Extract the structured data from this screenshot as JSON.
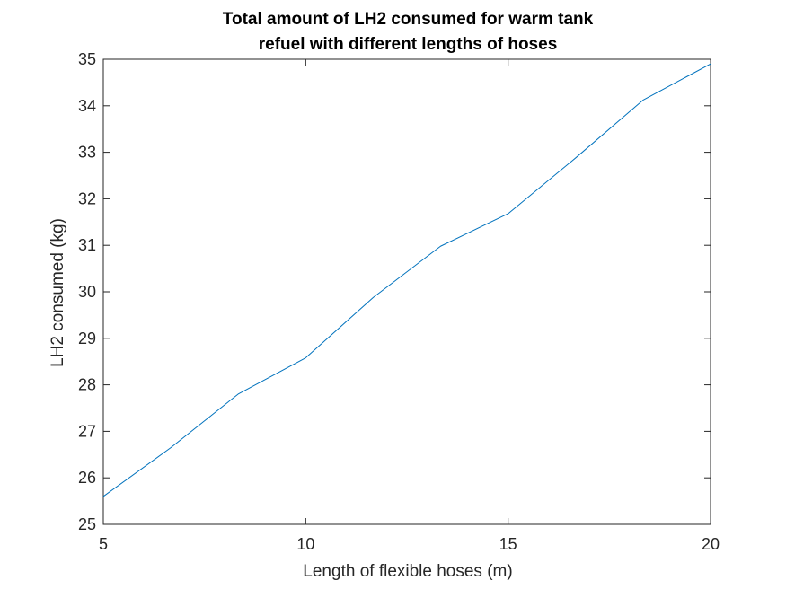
{
  "chart_data": {
    "type": "line",
    "title": [
      "Total amount of LH2 consumed for warm tank",
      "refuel with different lengths of hoses"
    ],
    "xlabel": "Length of flexible hoses (m)",
    "ylabel": "LH2 consumed (kg)",
    "xlim": [
      5,
      20
    ],
    "ylim": [
      25,
      35
    ],
    "xticks": [
      5,
      10,
      15,
      20
    ],
    "yticks": [
      25,
      26,
      27,
      28,
      29,
      30,
      31,
      32,
      33,
      34,
      35
    ],
    "grid": false,
    "legend": null,
    "series": [
      {
        "color": "#0072bd",
        "x": [
          5,
          6.67,
          8.33,
          10,
          11.67,
          13.33,
          15,
          16.67,
          18.33,
          20
        ],
        "y": [
          25.6,
          26.65,
          27.8,
          28.58,
          29.88,
          30.98,
          31.68,
          32.88,
          34.12,
          34.9
        ]
      }
    ]
  }
}
